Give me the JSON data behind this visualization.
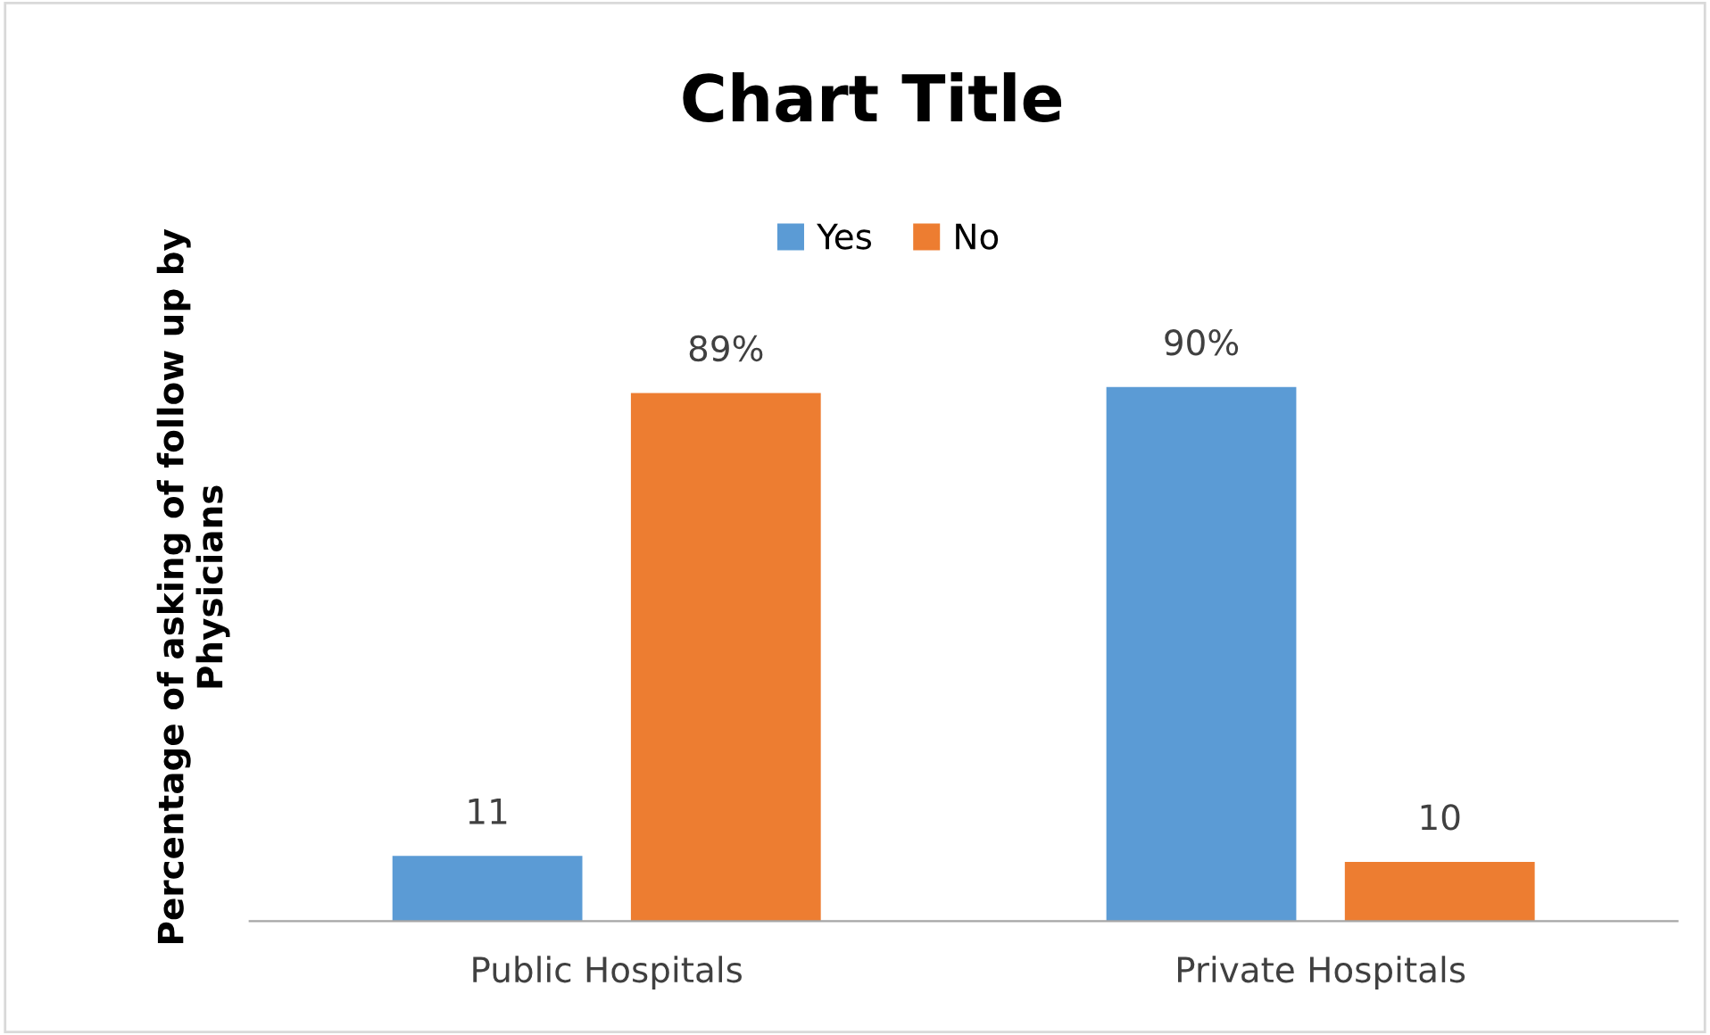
{
  "chart_data": {
    "type": "bar",
    "title": "Chart Title",
    "ylabel": "Percentage of asking of follow up by\nPhysicians",
    "categories": [
      "Public Hospitals",
      "Private Hospitals"
    ],
    "series": [
      {
        "name": "Yes",
        "color": "#5b9bd5",
        "values": [
          11,
          90
        ],
        "value_labels": [
          "11",
          "90%"
        ]
      },
      {
        "name": "No",
        "color": "#ed7d31",
        "values": [
          89,
          10
        ],
        "value_labels": [
          "89%",
          "10"
        ]
      }
    ],
    "legend": "top",
    "grid": false
  }
}
